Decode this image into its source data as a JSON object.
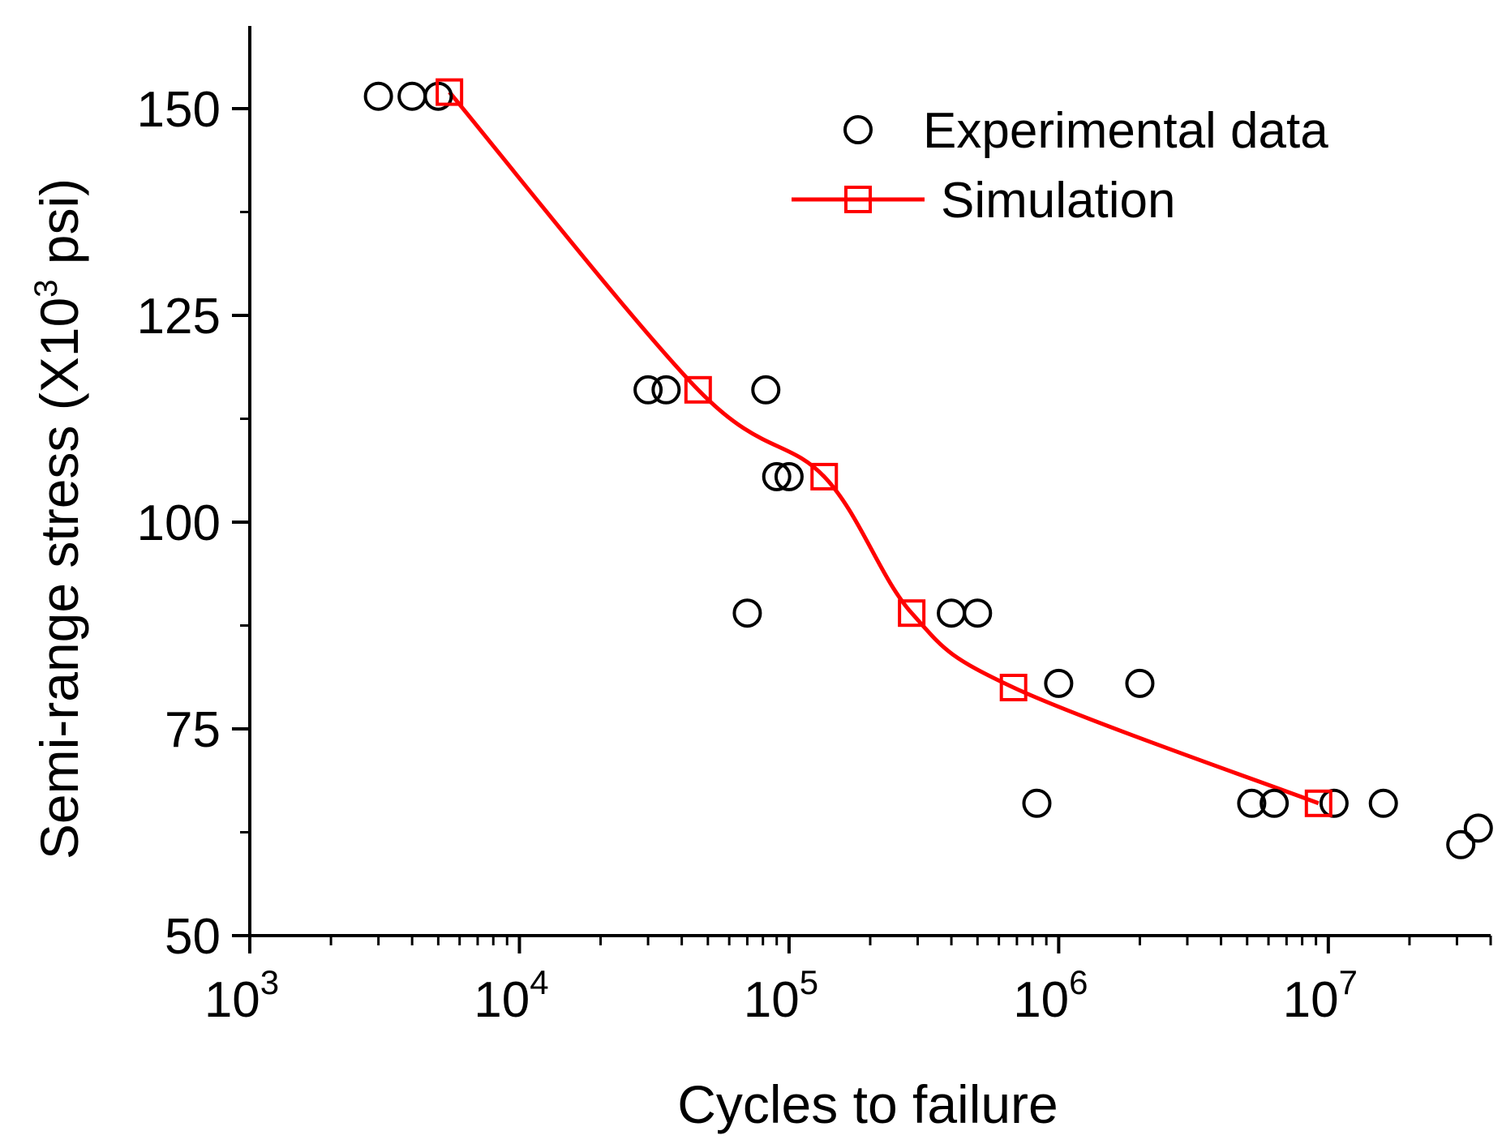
{
  "chart_data": {
    "type": "scatter",
    "xlabel": "Cycles to failure",
    "ylabel": "Semi-range stress (X10",
    "ylabel_sup": "3",
    "ylabel_tail": " psi)",
    "xscale": "log",
    "xlim": [
      1000,
      40000000
    ],
    "ylim": [
      50,
      160
    ],
    "x_ticks": [
      {
        "value": 1000,
        "base": "10",
        "exp": "3"
      },
      {
        "value": 10000,
        "base": "10",
        "exp": "4"
      },
      {
        "value": 100000,
        "base": "10",
        "exp": "5"
      },
      {
        "value": 1000000,
        "base": "10",
        "exp": "6"
      },
      {
        "value": 10000000,
        "base": "10",
        "exp": "7"
      }
    ],
    "y_ticks": [
      {
        "value": 50,
        "label": "50"
      },
      {
        "value": 75,
        "label": "75"
      },
      {
        "value": 100,
        "label": "100"
      },
      {
        "value": 125,
        "label": "125"
      },
      {
        "value": 150,
        "label": "150"
      }
    ],
    "y_minor_ticks": [
      62.5,
      87.5,
      112.5,
      137.5
    ],
    "grid": false,
    "legend_position": "top-right",
    "series": [
      {
        "name": "Experimental data",
        "marker": "circle",
        "color": "#000000",
        "points": [
          [
            3000,
            151.5
          ],
          [
            4000,
            151.5
          ],
          [
            5000,
            151.5
          ],
          [
            30000,
            116
          ],
          [
            35000,
            116
          ],
          [
            82000,
            116
          ],
          [
            90000,
            105.5
          ],
          [
            100000,
            105.5
          ],
          [
            70000,
            89
          ],
          [
            400000,
            89
          ],
          [
            500000,
            89
          ],
          [
            1000000,
            80.5
          ],
          [
            2000000,
            80.5
          ],
          [
            830000,
            66
          ],
          [
            5200000,
            66
          ],
          [
            6300000,
            66
          ],
          [
            10500000,
            66
          ],
          [
            16000000,
            66
          ],
          [
            31000000,
            61
          ],
          [
            36000000,
            63
          ]
        ]
      },
      {
        "name": "Simulation",
        "marker": "square",
        "color": "#ff0000",
        "line": true,
        "points": [
          [
            5500,
            152
          ],
          [
            46000,
            116
          ],
          [
            135000,
            105.5
          ],
          [
            285000,
            89
          ],
          [
            680000,
            80
          ],
          [
            9200000,
            66
          ]
        ]
      }
    ]
  }
}
